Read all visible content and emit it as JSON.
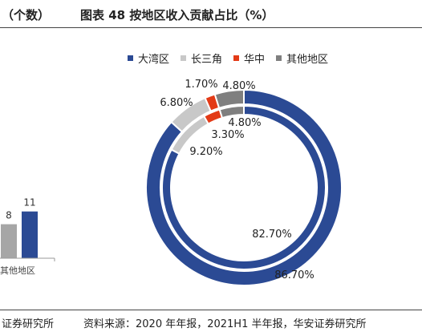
{
  "header": {
    "unit_label": "（个数）",
    "figure_title": "图表 48  按地区收入贡献占比（%）"
  },
  "footer": {
    "source_left": "证券研究所",
    "source_right": "资料来源：2020 年年报，2021H1 半年报，华安证券研究所"
  },
  "legend": [
    {
      "name": "大湾区",
      "color": "#2b4a94"
    },
    {
      "name": "长三角",
      "color": "#c8c8c8"
    },
    {
      "name": "华中",
      "color": "#e33a16"
    },
    {
      "name": "其他地区",
      "color": "#7f7f7f"
    }
  ],
  "chart_data": [
    {
      "type": "bar",
      "partial": true,
      "categories": [
        "其他地区"
      ],
      "series": [
        {
          "values": [
            8
          ],
          "color": "#a6a6a6"
        },
        {
          "values": [
            11
          ],
          "color": "#2b4a94"
        }
      ],
      "data_labels": [
        "8",
        "11"
      ]
    },
    {
      "type": "pie",
      "style": "doughnut",
      "rings": [
        {
          "ring": "outer",
          "categories": [
            "大湾区",
            "长三角",
            "华中",
            "其他地区"
          ],
          "values": [
            86.7,
            6.8,
            1.7,
            4.8
          ],
          "labels": [
            "86.70%",
            "6.80%",
            "1.70%",
            "4.80%"
          ]
        },
        {
          "ring": "inner",
          "categories": [
            "大湾区",
            "长三角",
            "华中",
            "其他地区"
          ],
          "values": [
            82.7,
            9.2,
            3.3,
            4.8
          ],
          "labels": [
            "82.70%",
            "9.20%",
            "3.30%",
            "4.80%"
          ]
        }
      ]
    }
  ]
}
